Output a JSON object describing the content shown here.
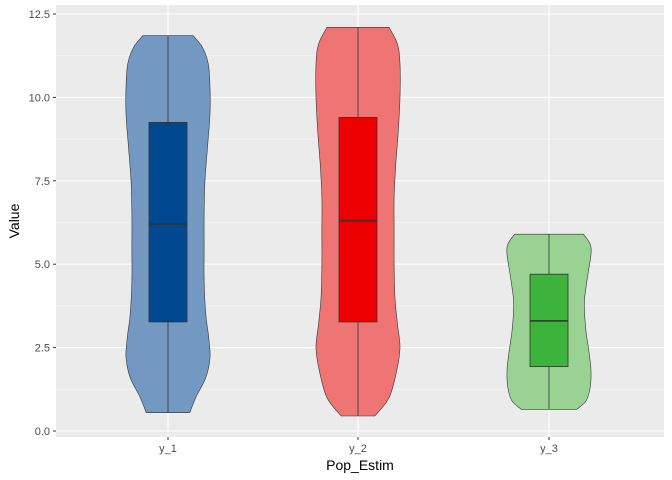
{
  "chart_data": {
    "type": "violin",
    "xlabel": "Pop_Estim",
    "ylabel": "Value",
    "ylim": [
      0,
      12.5
    ],
    "y_ticks": [
      0.0,
      2.5,
      5.0,
      7.5,
      10.0,
      12.5
    ],
    "y_tick_labels": [
      "0.0",
      "2.5",
      "5.0",
      "7.5",
      "10.0",
      "12.5"
    ],
    "categories": [
      "y_1",
      "y_2",
      "y_3"
    ],
    "grid": true,
    "legend": "none",
    "series": [
      {
        "category": "y_1",
        "violin_color": "#7399c2",
        "box_color": "#00488f",
        "min": 0.55,
        "q1": 3.27,
        "median": 6.2,
        "q3": 9.25,
        "max": 11.85,
        "density": [
          [
            0.55,
            0.52
          ],
          [
            1.0,
            0.66
          ],
          [
            1.6,
            0.9
          ],
          [
            2.2,
            1.0
          ],
          [
            2.8,
            0.97
          ],
          [
            3.5,
            0.9
          ],
          [
            4.5,
            0.86
          ],
          [
            5.5,
            0.86
          ],
          [
            6.5,
            0.86
          ],
          [
            7.5,
            0.88
          ],
          [
            8.5,
            0.94
          ],
          [
            9.5,
            1.0
          ],
          [
            10.3,
            1.0
          ],
          [
            11.0,
            0.96
          ],
          [
            11.5,
            0.82
          ],
          [
            11.85,
            0.6
          ]
        ]
      },
      {
        "category": "y_2",
        "violin_color": "#ee7574",
        "box_color": "#ee0000",
        "min": 0.45,
        "q1": 3.27,
        "median": 6.3,
        "q3": 9.4,
        "max": 12.1,
        "density": [
          [
            0.45,
            0.4
          ],
          [
            1.0,
            0.74
          ],
          [
            1.8,
            0.92
          ],
          [
            2.5,
            1.0
          ],
          [
            3.2,
            0.94
          ],
          [
            4.0,
            0.88
          ],
          [
            5.0,
            0.86
          ],
          [
            6.0,
            0.86
          ],
          [
            7.0,
            0.86
          ],
          [
            8.0,
            0.9
          ],
          [
            9.0,
            0.96
          ],
          [
            10.0,
            1.0
          ],
          [
            11.0,
            1.0
          ],
          [
            11.6,
            0.94
          ],
          [
            12.1,
            0.74
          ]
        ]
      },
      {
        "category": "y_3",
        "violin_color": "#9ad294",
        "box_color": "#3cb43c",
        "min": 0.65,
        "q1": 1.93,
        "median": 3.3,
        "q3": 4.7,
        "max": 5.9,
        "density": [
          [
            0.65,
            0.66
          ],
          [
            0.9,
            0.88
          ],
          [
            1.3,
            0.98
          ],
          [
            1.8,
            1.0
          ],
          [
            2.3,
            0.96
          ],
          [
            3.0,
            0.88
          ],
          [
            3.8,
            0.84
          ],
          [
            4.3,
            0.88
          ],
          [
            4.8,
            0.94
          ],
          [
            5.3,
            1.0
          ],
          [
            5.6,
            0.98
          ],
          [
            5.9,
            0.82
          ]
        ]
      }
    ]
  }
}
